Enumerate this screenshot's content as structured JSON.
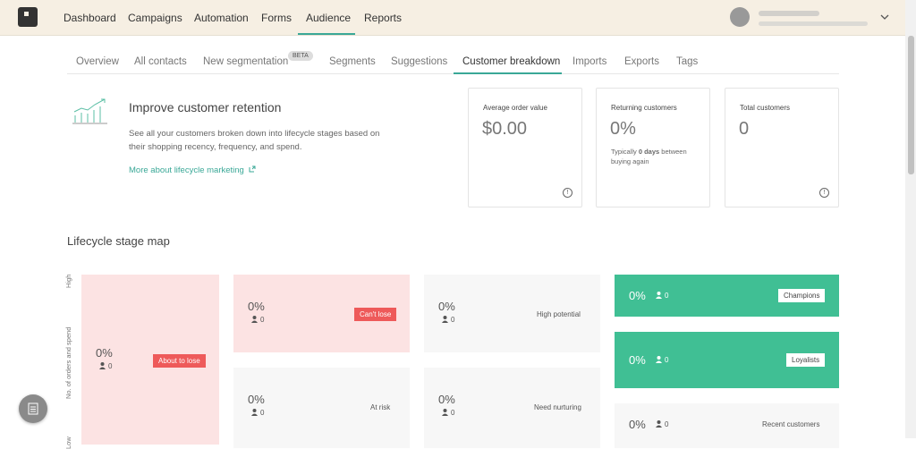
{
  "nav": {
    "items": [
      "Dashboard",
      "Campaigns",
      "Automation",
      "Forms",
      "Audience",
      "Reports"
    ]
  },
  "tabs": {
    "items": [
      "Overview",
      "All contacts",
      "New segmentation",
      "Segments",
      "Suggestions",
      "Customer breakdown",
      "Imports",
      "Exports",
      "Tags"
    ],
    "beta_badge": "BETA"
  },
  "hero": {
    "title": "Improve customer retention",
    "description": "See all your customers broken down into lifecycle stages based on their shopping recency, frequency, and spend.",
    "link": "More about lifecycle marketing"
  },
  "cards": [
    {
      "label": "Average order value",
      "value": "$0.00"
    },
    {
      "label": "Returning customers",
      "value": "0%",
      "note": [
        "Typically ",
        "0 days",
        " between buying again"
      ]
    },
    {
      "label": "Total customers",
      "value": "0"
    }
  ],
  "map": {
    "title": "Lifecycle stage map",
    "y_axis": {
      "label": "No. of orders and spend",
      "high": "High",
      "low": "Low"
    },
    "stages": [
      {
        "name": "About to lose",
        "percent": "0%",
        "count": "0"
      },
      {
        "name": "Can't lose",
        "percent": "0%",
        "count": "0"
      },
      {
        "name": "High potential",
        "percent": "0%",
        "count": "0"
      },
      {
        "name": "Champions",
        "percent": "0%",
        "count": "0"
      },
      {
        "name": "Loyalists",
        "percent": "0%",
        "count": "0"
      },
      {
        "name": "At risk",
        "percent": "0%",
        "count": "0"
      },
      {
        "name": "Need nurturing",
        "percent": "0%",
        "count": "0"
      },
      {
        "name": "Recent customers",
        "percent": "0%",
        "count": "0"
      }
    ]
  }
}
